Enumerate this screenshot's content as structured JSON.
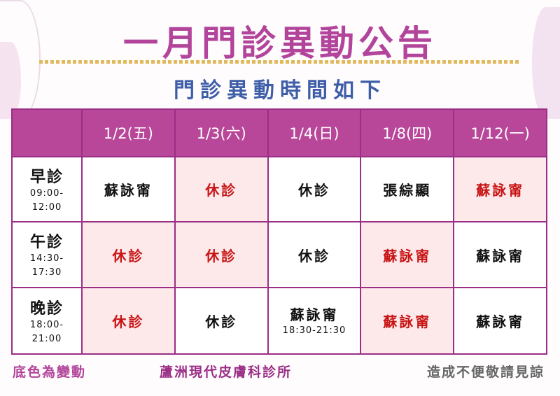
{
  "title": "一月門診異動公告",
  "subtitle": "門診異動時間如下",
  "colors": {
    "header": "#b8479a",
    "changed_bg": "#fde8ea",
    "changed_text": "#c81414",
    "title": "#b2449b",
    "subtitle": "#3e5ea8"
  },
  "dates": [
    "1/2(五)",
    "1/3(六)",
    "1/4(日)",
    "1/8(四)",
    "1/12(一)"
  ],
  "rows": [
    {
      "slot": "早診",
      "time1": "09:00-",
      "time2": "12:00",
      "cells": [
        {
          "text": "蘇詠甯",
          "changed": false
        },
        {
          "text": "休診",
          "changed": true
        },
        {
          "text": "休診",
          "changed": false
        },
        {
          "text": "張綜顯",
          "changed": false
        },
        {
          "text": "蘇詠甯",
          "changed": true
        }
      ]
    },
    {
      "slot": "午診",
      "time1": "14:30-",
      "time2": "17:30",
      "cells": [
        {
          "text": "休診",
          "changed": true
        },
        {
          "text": "休診",
          "changed": true
        },
        {
          "text": "休診",
          "changed": false
        },
        {
          "text": "蘇詠甯",
          "changed": true
        },
        {
          "text": "蘇詠甯",
          "changed": false
        }
      ]
    },
    {
      "slot": "晚診",
      "time1": "18:00-",
      "time2": "21:00",
      "cells": [
        {
          "text": "休診",
          "changed": true
        },
        {
          "text": "休診",
          "changed": false
        },
        {
          "text": "蘇詠甯",
          "changed": false,
          "note": "18:30-21:30"
        },
        {
          "text": "蘇詠甯",
          "changed": true
        },
        {
          "text": "蘇詠甯",
          "changed": false
        }
      ]
    }
  ],
  "footer": {
    "legend": "底色為變動",
    "clinic": "蘆洲現代皮膚科診所",
    "apology": "造成不便敬請見諒"
  }
}
